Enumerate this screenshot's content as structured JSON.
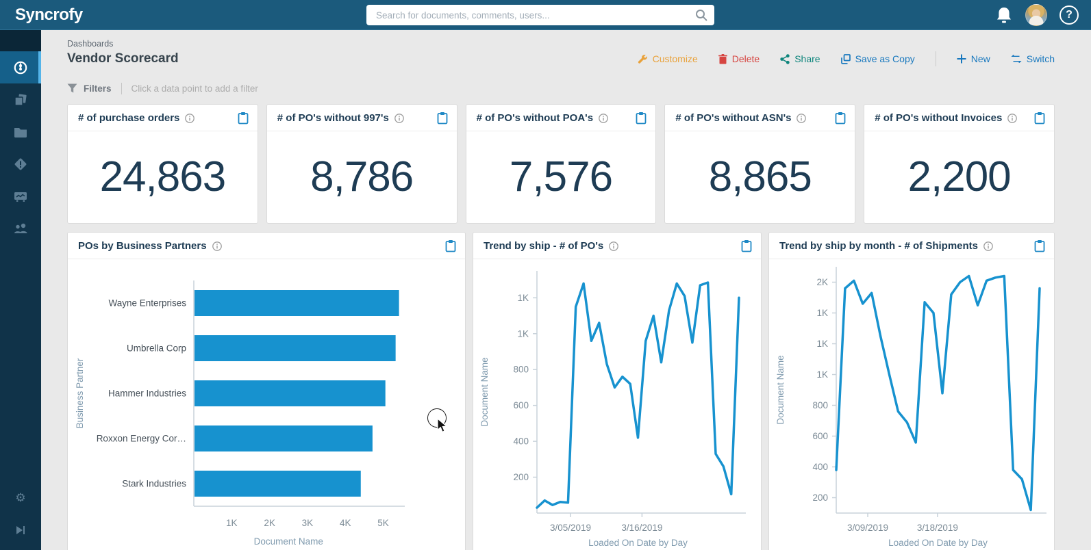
{
  "header": {
    "logo": "Syncrofy",
    "search_placeholder": "Search for documents, comments, users...",
    "help_label": "?"
  },
  "sidebar": {
    "items": [
      {
        "name": "dashboards",
        "icon": "gauge-icon",
        "active": true
      },
      {
        "name": "documents",
        "icon": "documents-icon",
        "active": false
      },
      {
        "name": "files",
        "icon": "folder-icon",
        "active": false
      },
      {
        "name": "exceptions",
        "icon": "exception-diamond-icon",
        "active": false
      },
      {
        "name": "reports",
        "icon": "chart-board-icon",
        "active": false
      },
      {
        "name": "partners",
        "icon": "people-icon",
        "active": false
      }
    ],
    "bottom_items": [
      {
        "name": "settings",
        "icon": "gear-icon"
      },
      {
        "name": "collapse",
        "icon": "skip-end-icon"
      }
    ]
  },
  "page": {
    "breadcrumb": "Dashboards",
    "title": "Vendor Scorecard",
    "actions": [
      {
        "label": "Customize",
        "color": "#E9A23B",
        "icon": "wrench-icon"
      },
      {
        "label": "Delete",
        "color": "#D64541",
        "icon": "trash-icon"
      },
      {
        "label": "Share",
        "color": "#0E857C",
        "icon": "share-icon"
      },
      {
        "label": "Save as Copy",
        "color": "#1878BE",
        "icon": "copy-icon"
      },
      {
        "label": "New",
        "color": "#1878BE",
        "icon": "plus-icon"
      },
      {
        "label": "Switch",
        "color": "#1878BE",
        "icon": "switch-icon"
      }
    ],
    "filters": {
      "label": "Filters",
      "hint": "Click a data point to add a filter"
    }
  },
  "kpis": [
    {
      "title": "# of purchase orders",
      "value": "24,863"
    },
    {
      "title": "# of PO's without 997's",
      "value": "8,786"
    },
    {
      "title": "# of PO's without POA's",
      "value": "7,576"
    },
    {
      "title": "# of PO's without ASN's",
      "value": "8,865"
    },
    {
      "title": "# of PO's without Invoices",
      "value": "2,200"
    }
  ],
  "colors": {
    "header_bar": "#1B5A7C",
    "sidebar": "#103349",
    "sidebar_active": "#15608A",
    "sidebar_active_stripe": "#54B4E9",
    "accent_blue": "#1792CF",
    "clipboard_blue": "#1E88C5",
    "card_title": "#1E3C54",
    "axis_line": "#C8D2DA",
    "tick_text": "#7C8B96",
    "axis_label": "#7F9AAE",
    "page_bg": "#E9E9E9"
  },
  "chart_data": [
    {
      "type": "bar",
      "orientation": "horizontal",
      "title": "POs by Business Partners",
      "categories": [
        "Wayne Enterprises",
        "Umbrella Corp",
        "Hammer Industries",
        "Roxxon Energy Cor…",
        "Stark Industries"
      ],
      "values": [
        5400,
        5310,
        5040,
        4700,
        4390
      ],
      "xlabel": "Document Name",
      "ylabel": "Business Partner",
      "x_tick_labels": [
        "1K",
        "2K",
        "3K",
        "4K",
        "5K"
      ],
      "x_tick_step": 1000,
      "xlim": [
        0,
        5500
      ],
      "bar_color": "#1792CF",
      "grid": false
    },
    {
      "type": "line",
      "title": "Trend by ship - # of PO's",
      "xlabel": "Loaded On Date by Day",
      "ylabel": "Document Name",
      "ylim": [
        0,
        1350
      ],
      "y_ticks": [
        {
          "value": 200,
          "label": "200"
        },
        {
          "value": 400,
          "label": "400"
        },
        {
          "value": 600,
          "label": "600"
        },
        {
          "value": 800,
          "label": "800"
        },
        {
          "value": 1000,
          "label": "1K"
        },
        {
          "value": 1200,
          "label": "1K"
        }
      ],
      "x_ticks": [
        {
          "label": "3/05/2019",
          "pos": 0.166
        },
        {
          "label": "3/16/2019",
          "pos": 0.52
        }
      ],
      "values": [
        30,
        70,
        45,
        62,
        58,
        1150,
        1280,
        960,
        1060,
        830,
        700,
        760,
        720,
        420,
        960,
        1100,
        840,
        1130,
        1280,
        1210,
        950,
        1270,
        1285,
        330,
        260,
        105,
        1200
      ],
      "line_color": "#1792CF",
      "grid": false
    },
    {
      "type": "line",
      "title": "Trend by ship by month - # of Shipments",
      "xlabel": "Loaded On Date by Day",
      "ylabel": "Document Name",
      "ylim": [
        100,
        1700
      ],
      "y_ticks": [
        {
          "value": 200,
          "label": "200"
        },
        {
          "value": 400,
          "label": "400"
        },
        {
          "value": 600,
          "label": "600"
        },
        {
          "value": 800,
          "label": "800"
        },
        {
          "value": 1000,
          "label": "1K"
        },
        {
          "value": 1200,
          "label": "1K"
        },
        {
          "value": 1400,
          "label": "1K"
        },
        {
          "value": 1600,
          "label": "2K"
        }
      ],
      "x_ticks": [
        {
          "label": "3/09/2019",
          "pos": 0.155
        },
        {
          "label": "3/18/2019",
          "pos": 0.498
        }
      ],
      "values": [
        380,
        1560,
        1610,
        1460,
        1530,
        1250,
        1000,
        760,
        690,
        558,
        1470,
        1400,
        878,
        1520,
        1600,
        1640,
        1450,
        1610,
        1630,
        1640,
        380,
        320,
        120,
        1560
      ],
      "line_color": "#1792CF",
      "grid": false
    }
  ]
}
